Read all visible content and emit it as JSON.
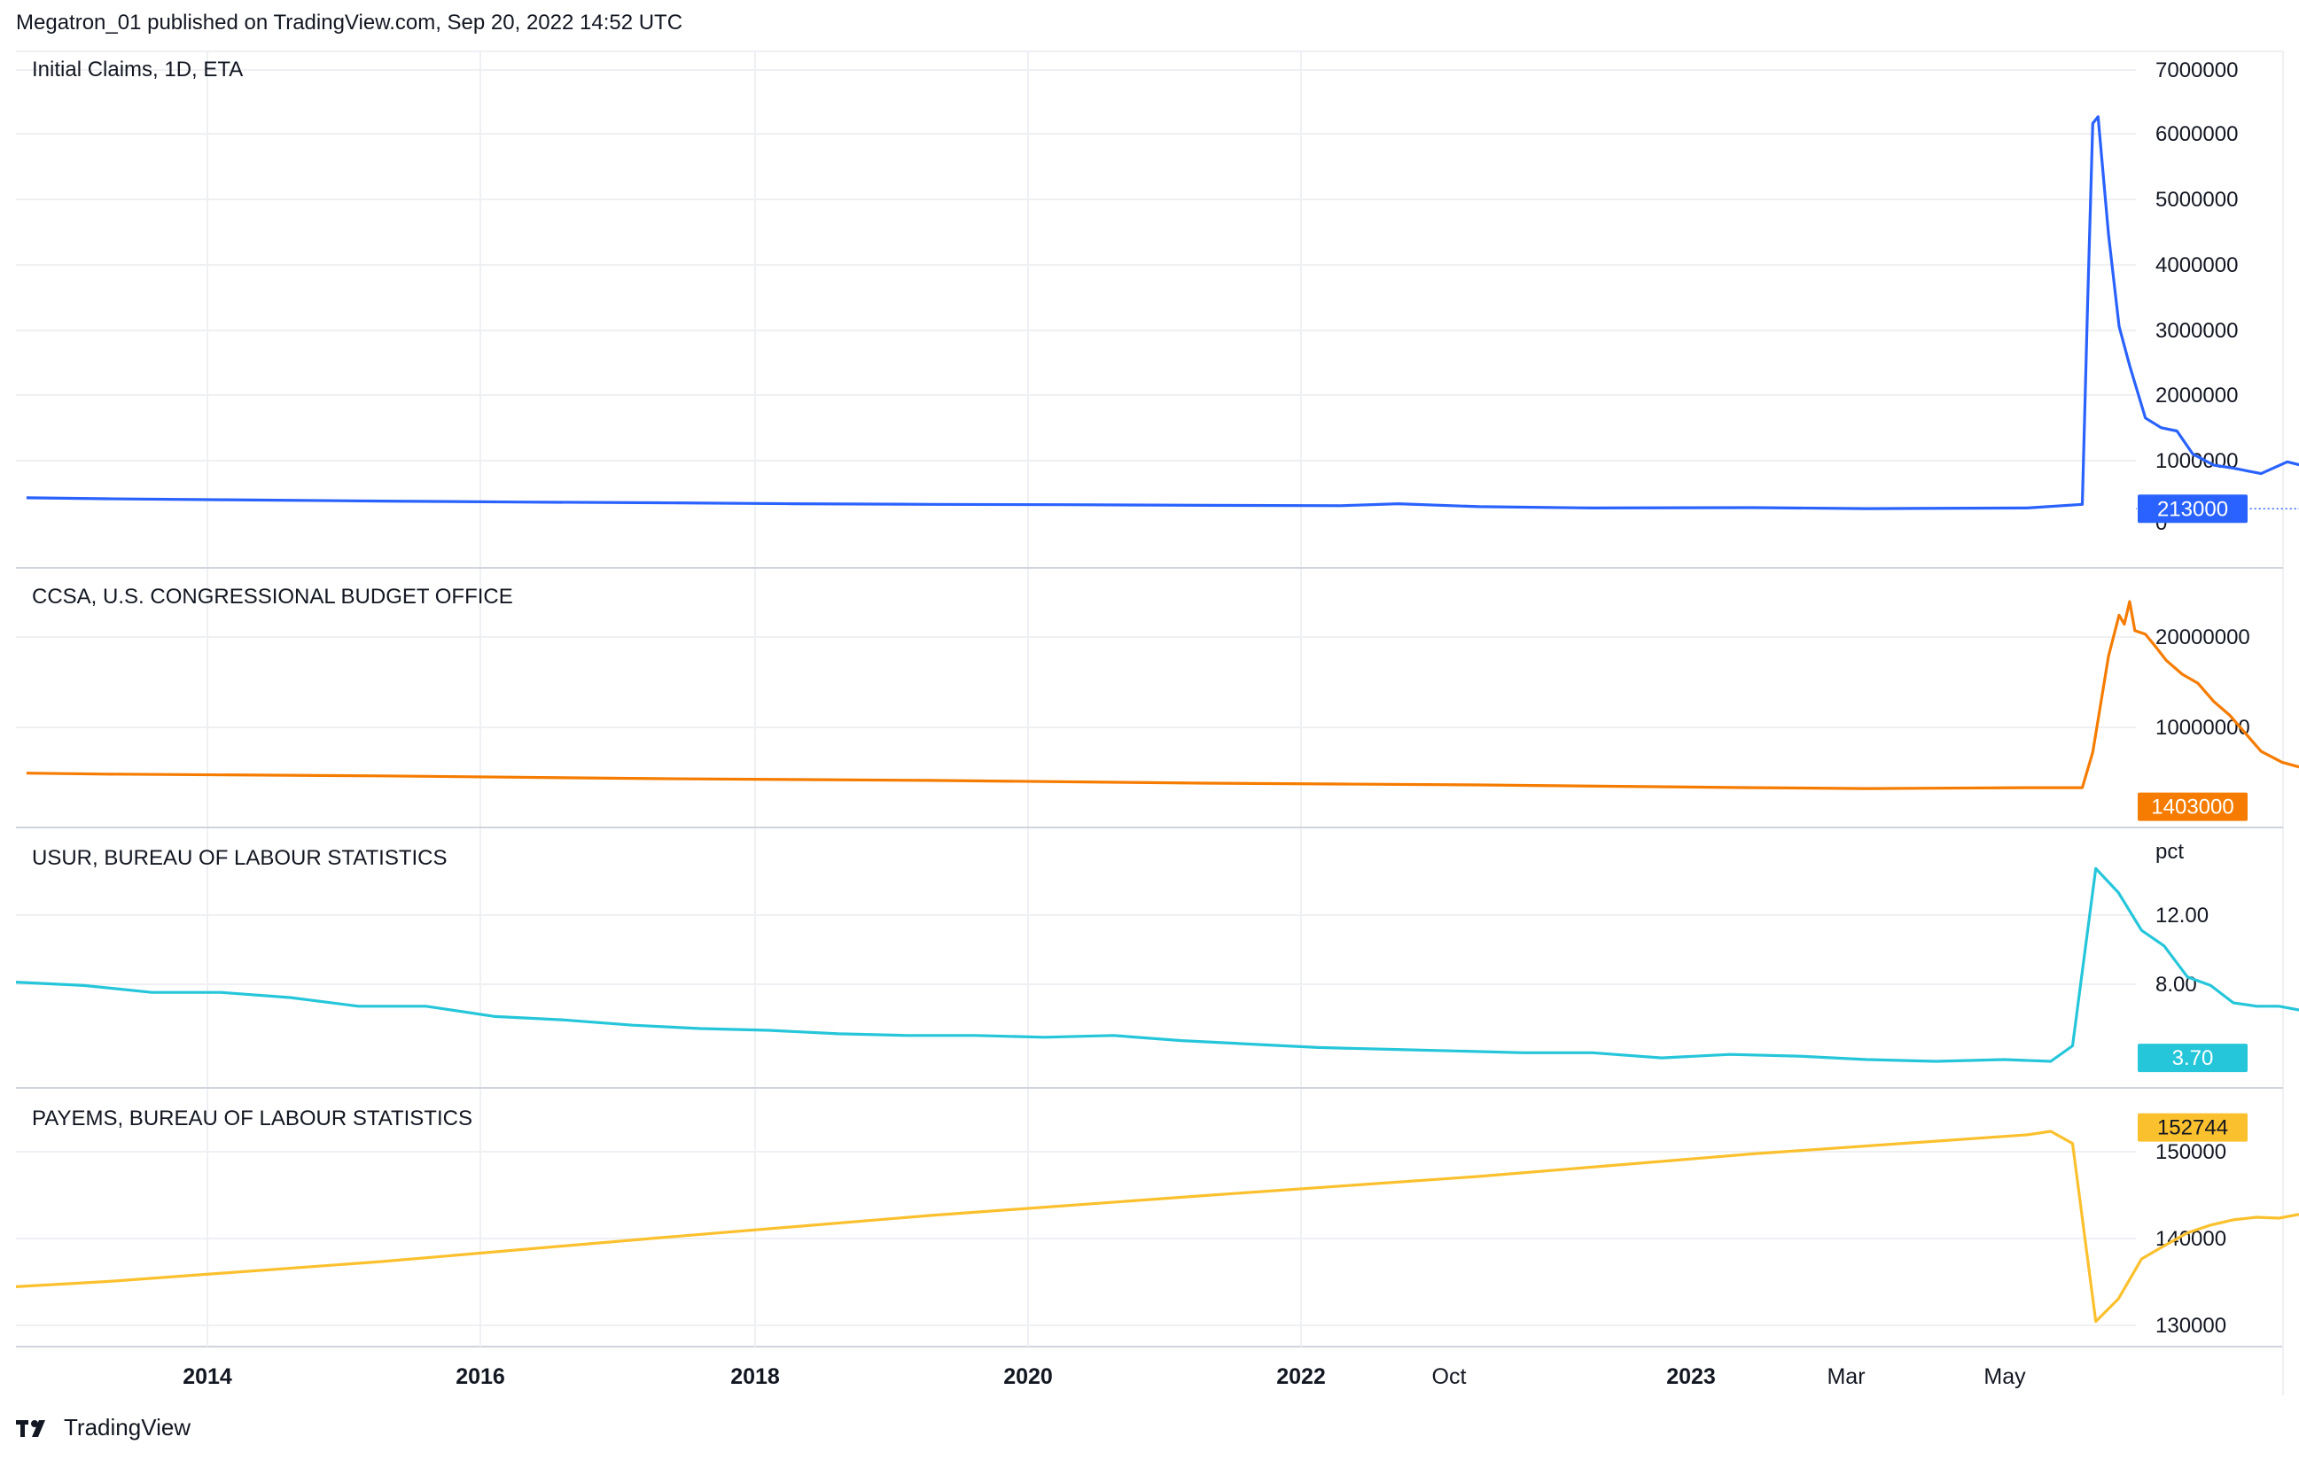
{
  "header": {
    "published": "Megatron_01 published on TradingView.com, Sep 20, 2022 14:52 UTC"
  },
  "brand": {
    "name": "TradingView",
    "logo_icon": "tradingview-logo-icon"
  },
  "colors": {
    "claims": "#2962ff",
    "ccsa": "#f57c00",
    "usur": "#26c6da",
    "payems": "#fbc02d",
    "grid": "#eef0f3",
    "separator": "#d1d4dc"
  },
  "x_axis": {
    "ticks": [
      {
        "label": "2014",
        "bold": true
      },
      {
        "label": "2016",
        "bold": true
      },
      {
        "label": "2018",
        "bold": true
      },
      {
        "label": "2020",
        "bold": true
      },
      {
        "label": "2022",
        "bold": true
      },
      {
        "label": "Oct",
        "bold": false
      },
      {
        "label": "2023",
        "bold": true
      },
      {
        "label": "Mar",
        "bold": false
      },
      {
        "label": "May",
        "bold": false
      }
    ]
  },
  "chart_data": [
    {
      "type": "line",
      "title": "Initial Claims, 1D, ETA",
      "series": [
        {
          "name": "Initial Claims",
          "color": "#2962ff",
          "x": [
            "2012-09-15",
            "2013-01-01",
            "2013-06-01",
            "2014-01-01",
            "2014-07-01",
            "2015-01-01",
            "2015-07-01",
            "2016-01-01",
            "2016-07-01",
            "2017-01-01",
            "2017-07-01",
            "2017-09-15",
            "2018-01-01",
            "2018-06-01",
            "2019-01-01",
            "2019-06-01",
            "2020-01-01",
            "2020-03-14",
            "2020-03-21",
            "2020-03-28",
            "2020-04-04",
            "2020-04-18",
            "2020-05-02",
            "2020-05-16",
            "2020-06-06",
            "2020-06-27",
            "2020-07-18",
            "2020-08-08",
            "2020-09-05",
            "2020-10-03",
            "2020-11-07",
            "2020-12-12",
            "2021-01-09",
            "2021-02-13",
            "2021-03-20",
            "2021-04-24",
            "2021-05-29",
            "2021-07-03",
            "2021-08-07",
            "2021-09-11",
            "2021-10-16",
            "2021-11-20",
            "2022-01-01",
            "2022-02-05",
            "2022-03-19",
            "2022-05-07",
            "2022-06-18",
            "2022-07-30",
            "2022-09-10"
          ],
          "y": [
            380000,
            365000,
            350000,
            330000,
            315000,
            305000,
            290000,
            280000,
            275000,
            265000,
            260000,
            290000,
            245000,
            225000,
            230000,
            215000,
            225000,
            280000,
            3300000,
            6100000,
            6200000,
            4400000,
            3000000,
            2400000,
            1600000,
            1450000,
            1400000,
            1050000,
            880000,
            830000,
            750000,
            930000,
            850000,
            800000,
            700000,
            580000,
            430000,
            400000,
            380000,
            350000,
            290000,
            250000,
            220000,
            240000,
            200000,
            200000,
            240000,
            250000,
            213000
          ],
          "last_value": "213000"
        }
      ],
      "y_axis": {
        "ticks": [
          "7000000",
          "6000000",
          "5000000",
          "4000000",
          "3000000",
          "2000000",
          "1000000",
          "0"
        ],
        "ylim": [
          0,
          7000000
        ]
      }
    },
    {
      "type": "line",
      "title": "CCSA, U.S. CONGRESSIONAL BUDGET OFFICE",
      "series": [
        {
          "name": "CCSA",
          "color": "#f57c00",
          "x": [
            "2012-09-15",
            "2013-01-01",
            "2014-01-01",
            "2015-01-01",
            "2016-01-01",
            "2017-01-01",
            "2017-07-01",
            "2018-01-01",
            "2019-01-01",
            "2019-06-01",
            "2020-01-01",
            "2020-03-14",
            "2020-03-28",
            "2020-04-18",
            "2020-05-02",
            "2020-05-09",
            "2020-05-16",
            "2020-05-23",
            "2020-06-06",
            "2020-06-20",
            "2020-07-04",
            "2020-07-25",
            "2020-08-15",
            "2020-09-05",
            "2020-09-26",
            "2020-10-17",
            "2020-11-07",
            "2020-12-05",
            "2021-01-09",
            "2021-03-06",
            "2021-05-01",
            "2021-07-03",
            "2021-09-04",
            "2021-11-06",
            "2022-01-01",
            "2022-03-05",
            "2022-05-07",
            "2022-07-02",
            "2022-09-10"
          ],
          "y": [
            5100000,
            5000000,
            4800000,
            4500000,
            4300000,
            4000000,
            3900000,
            3800000,
            3500000,
            3400000,
            3500000,
            3500000,
            7400000,
            18000000,
            22500000,
            21500000,
            24000000,
            20800000,
            20400000,
            19000000,
            17500000,
            16000000,
            15000000,
            13000000,
            11500000,
            9500000,
            7500000,
            6300000,
            5500000,
            4600000,
            3800000,
            3200000,
            2900000,
            2200000,
            1700000,
            1500000,
            1350000,
            1380000,
            1403000
          ],
          "last_value": "1403000"
        }
      ],
      "y_axis": {
        "ticks": [
          "20000000",
          "10000000"
        ],
        "ylim": [
          0,
          24500000
        ]
      }
    },
    {
      "type": "line",
      "title": "USUR, BUREAU OF LABOUR STATISTICS",
      "series": [
        {
          "name": "USUR",
          "color": "#26c6da",
          "x": [
            "2012-09-01",
            "2012-12-01",
            "2013-03-01",
            "2013-06-01",
            "2013-09-01",
            "2013-12-01",
            "2014-03-01",
            "2014-06-01",
            "2014-09-01",
            "2014-12-01",
            "2015-03-01",
            "2015-06-01",
            "2015-09-01",
            "2015-12-01",
            "2016-03-01",
            "2016-06-01",
            "2016-09-01",
            "2016-12-01",
            "2017-03-01",
            "2017-06-01",
            "2017-09-01",
            "2017-12-01",
            "2018-03-01",
            "2018-06-01",
            "2018-09-01",
            "2018-12-01",
            "2019-03-01",
            "2019-06-01",
            "2019-09-01",
            "2019-12-01",
            "2020-02-01",
            "2020-03-01",
            "2020-04-01",
            "2020-05-01",
            "2020-06-01",
            "2020-07-01",
            "2020-08-01",
            "2020-09-01",
            "2020-10-01",
            "2020-11-01",
            "2020-12-01",
            "2021-02-01",
            "2021-04-01",
            "2021-06-01",
            "2021-08-01",
            "2021-10-01",
            "2021-12-01",
            "2022-02-01",
            "2022-04-01",
            "2022-06-01",
            "2022-08-01"
          ],
          "y": [
            8.1,
            7.9,
            7.5,
            7.5,
            7.2,
            6.7,
            6.7,
            6.1,
            5.9,
            5.6,
            5.4,
            5.3,
            5.1,
            5.0,
            5.0,
            4.9,
            5.0,
            4.7,
            4.5,
            4.3,
            4.2,
            4.1,
            4.0,
            4.0,
            3.7,
            3.9,
            3.8,
            3.6,
            3.5,
            3.6,
            3.5,
            4.4,
            14.7,
            13.3,
            11.1,
            10.2,
            8.4,
            7.9,
            6.9,
            6.7,
            6.7,
            6.2,
            6.1,
            5.9,
            5.2,
            4.6,
            3.9,
            3.8,
            3.6,
            3.6,
            3.7
          ],
          "last_value": "3.70"
        }
      ],
      "y_axis": {
        "unit": "pct",
        "ticks": [
          "12.00",
          "8.00"
        ],
        "ylim": [
          3.0,
          16.0
        ]
      }
    },
    {
      "type": "line",
      "title": "PAYEMS, BUREAU OF LABOUR STATISTICS",
      "series": [
        {
          "name": "PAYEMS",
          "color": "#fbc02d",
          "x": [
            "2012-09-01",
            "2013-01-01",
            "2014-01-01",
            "2015-01-01",
            "2016-01-01",
            "2017-01-01",
            "2018-01-01",
            "2019-01-01",
            "2020-01-01",
            "2020-02-01",
            "2020-03-01",
            "2020-04-01",
            "2020-05-01",
            "2020-06-01",
            "2020-07-01",
            "2020-08-01",
            "2020-09-01",
            "2020-10-01",
            "2020-11-01",
            "2020-12-01",
            "2021-01-01",
            "2021-03-01",
            "2021-05-01",
            "2021-07-01",
            "2021-09-01",
            "2021-11-01",
            "2022-01-01",
            "2022-03-01",
            "2022-05-01",
            "2022-07-01",
            "2022-08-01"
          ],
          "y": [
            134400,
            135000,
            137300,
            140000,
            142600,
            144900,
            147100,
            149700,
            151900,
            152300,
            150900,
            130400,
            133000,
            137600,
            139100,
            140600,
            141500,
            142100,
            142400,
            142300,
            142800,
            143700,
            144800,
            146000,
            147000,
            148100,
            149300,
            150400,
            151200,
            152000,
            152744
          ],
          "last_value": "152744"
        }
      ],
      "y_axis": {
        "ticks": [
          "150000",
          "140000",
          "130000"
        ],
        "ylim": [
          128500,
          155700
        ]
      }
    }
  ]
}
